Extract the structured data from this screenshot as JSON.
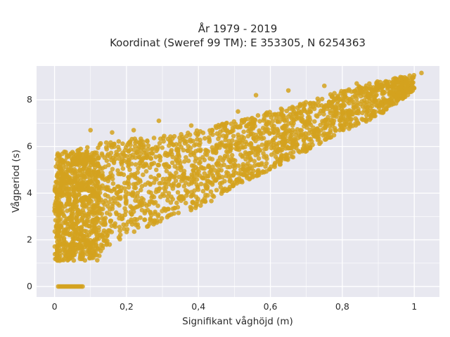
{
  "chart_data": {
    "type": "scatter",
    "title_line1": "År 1979 - 2019",
    "title_line2": "Koordinat (Sweref 99 TM): E 353305, N 6254363",
    "xlabel": "Signifikant våghöjd (m)",
    "ylabel": "Vågperiod (s)",
    "xlim": [
      -0.05,
      1.07
    ],
    "ylim": [
      -0.45,
      9.45
    ],
    "x_ticks": [
      0,
      0.2,
      0.4,
      0.6,
      0.8,
      1
    ],
    "x_tick_labels": [
      "0",
      "0,2",
      "0,4",
      "0,6",
      "0,8",
      "1"
    ],
    "y_ticks": [
      0,
      2,
      4,
      6,
      8
    ],
    "y_tick_labels": [
      "0",
      "2",
      "4",
      "6",
      "8"
    ],
    "grid": true,
    "marker_color": "#D4A21F",
    "plot_background": "#E8E8F0",
    "envelope": [
      {
        "x": 0.0,
        "lower": 1.1,
        "upper": 5.7
      },
      {
        "x": 0.1,
        "lower": 1.2,
        "upper": 6.1
      },
      {
        "x": 0.2,
        "lower": 2.2,
        "upper": 6.3
      },
      {
        "x": 0.3,
        "lower": 2.8,
        "upper": 6.5
      },
      {
        "x": 0.4,
        "lower": 3.3,
        "upper": 6.7
      },
      {
        "x": 0.5,
        "lower": 4.3,
        "upper": 7.1
      },
      {
        "x": 0.6,
        "lower": 5.0,
        "upper": 7.5
      },
      {
        "x": 0.7,
        "lower": 5.8,
        "upper": 7.9
      },
      {
        "x": 0.8,
        "lower": 6.6,
        "upper": 8.4
      },
      {
        "x": 0.9,
        "lower": 7.3,
        "upper": 8.8
      },
      {
        "x": 1.0,
        "lower": 8.4,
        "upper": 9.1
      }
    ],
    "zero_period_points": {
      "x_range": [
        0.01,
        0.08
      ],
      "y": 0
    },
    "outliers": [
      {
        "x": 0.1,
        "y": 6.7
      },
      {
        "x": 0.16,
        "y": 6.6
      },
      {
        "x": 0.22,
        "y": 6.7
      },
      {
        "x": 0.29,
        "y": 7.1
      },
      {
        "x": 0.38,
        "y": 6.9
      },
      {
        "x": 0.45,
        "y": 6.8
      },
      {
        "x": 0.51,
        "y": 7.5
      },
      {
        "x": 0.56,
        "y": 8.2
      },
      {
        "x": 0.65,
        "y": 8.4
      },
      {
        "x": 0.75,
        "y": 8.6
      },
      {
        "x": 0.84,
        "y": 8.7
      },
      {
        "x": 0.9,
        "y": 8.6
      },
      {
        "x": 0.97,
        "y": 8.2
      },
      {
        "x": 1.02,
        "y": 9.15
      },
      {
        "x": 0.02,
        "y": 1.8
      },
      {
        "x": 0.005,
        "y": 1.2
      }
    ],
    "n_points": 2200
  }
}
